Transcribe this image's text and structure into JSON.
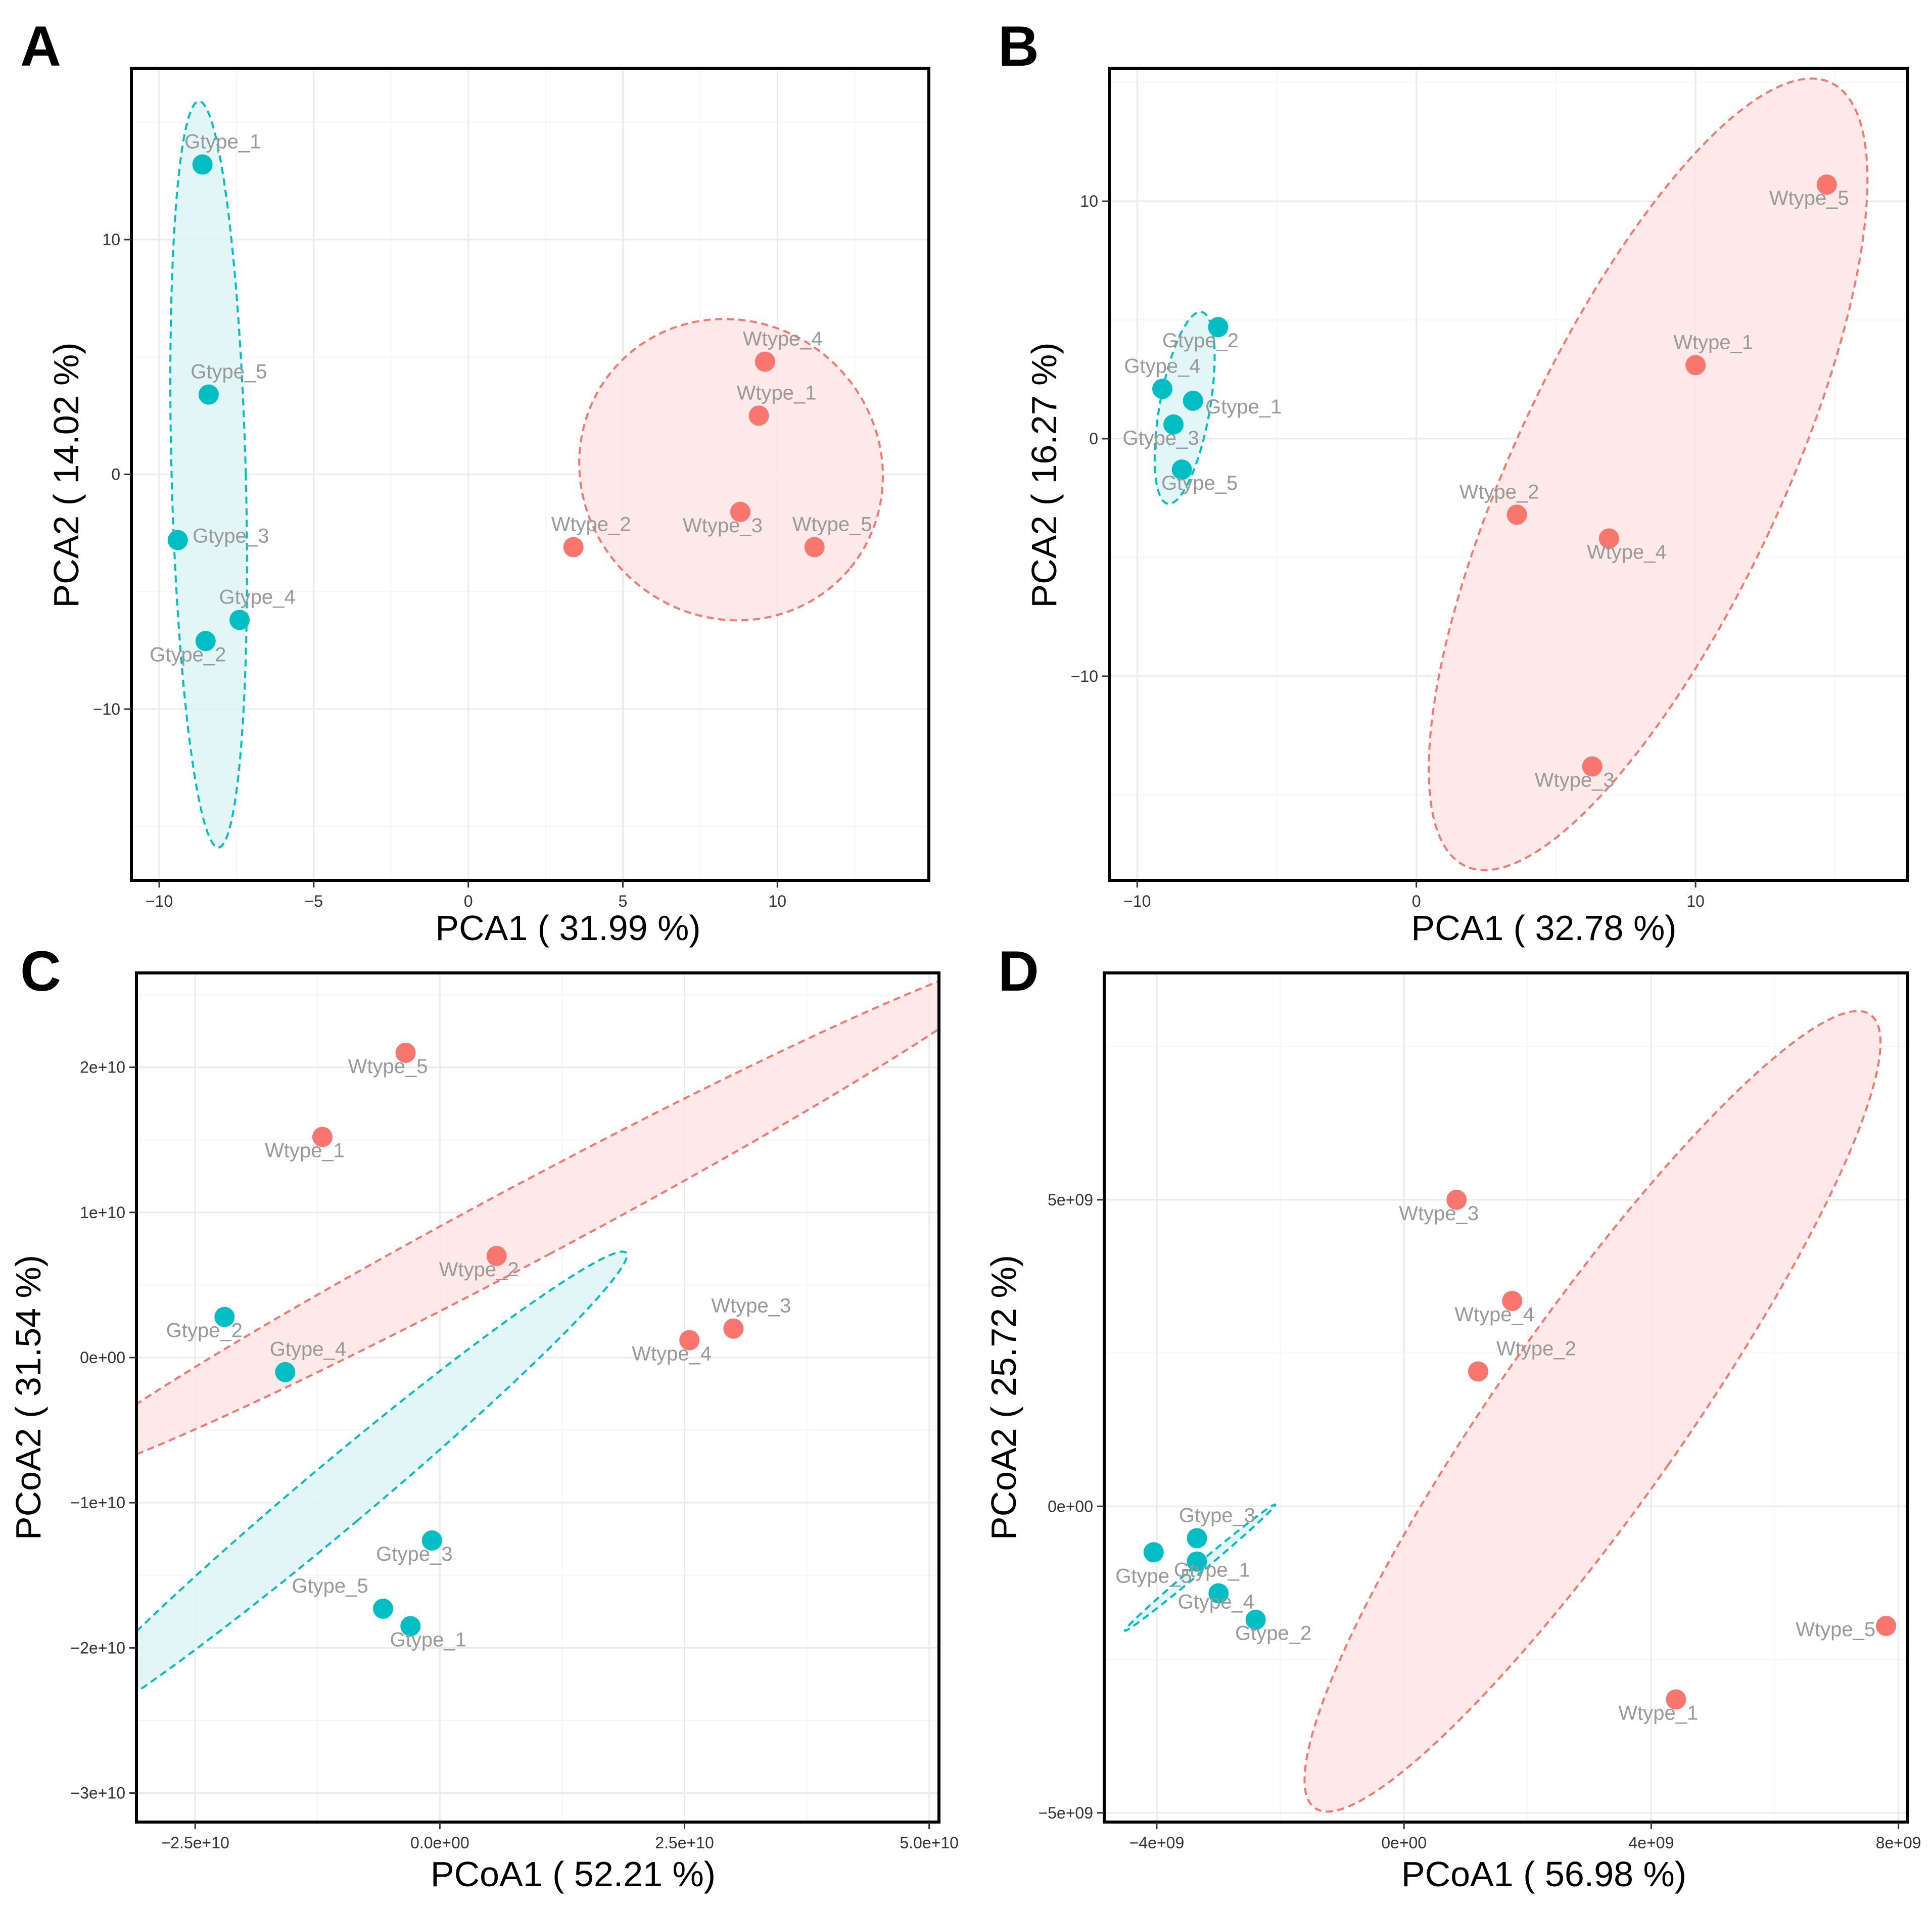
{
  "colors": {
    "wtype": "#F8766D",
    "gtype": "#00BFC4",
    "wtype_fill": "#FDE5E3",
    "gtype_fill": "#DDF4F4"
  },
  "chart_data": [
    {
      "type": "scatter",
      "panel": "A",
      "xlabel": "PCA1 ( 31.99 %)",
      "ylabel": "PCA2 ( 14.02 %)",
      "xlim": [
        -10.9,
        14.9
      ],
      "ylim": [
        -17.3,
        17.3
      ],
      "xticks": [
        -10,
        -5,
        0,
        5,
        10
      ],
      "xtick_labels": [
        "−10",
        "−5",
        "0",
        "5",
        "10"
      ],
      "yticks": [
        -10,
        0,
        10
      ],
      "ytick_labels": [
        "−10",
        "0",
        "10"
      ],
      "series": [
        {
          "name": "Gtype",
          "color": "#00BFC4",
          "points": [
            {
              "label": "Gtype_1",
              "x": -8.6,
              "y": 13.2
            },
            {
              "label": "Gtype_5",
              "x": -8.4,
              "y": 3.4
            },
            {
              "label": "Gtype_3",
              "x": -9.4,
              "y": -2.8
            },
            {
              "label": "Gtype_4",
              "x": -7.4,
              "y": -6.2
            },
            {
              "label": "Gtype_2",
              "x": -8.5,
              "y": -7.1
            }
          ],
          "ellipse": {
            "cx": -8.4,
            "cy": 0.0,
            "rx": 1.2,
            "ry": 15.9,
            "angle": -1.5
          }
        },
        {
          "name": "Wtype",
          "color": "#F8766D",
          "points": [
            {
              "label": "Wtype_4",
              "x": 9.6,
              "y": 4.8
            },
            {
              "label": "Wtype_1",
              "x": 9.4,
              "y": 2.5
            },
            {
              "label": "Wtype_3",
              "x": 8.8,
              "y": -1.6
            },
            {
              "label": "Wtype_5",
              "x": 11.2,
              "y": -3.1
            },
            {
              "label": "Wtype_2",
              "x": 3.4,
              "y": -3.1
            }
          ],
          "ellipse": {
            "cx": 8.5,
            "cy": 0.2,
            "rx": 5.0,
            "ry": 6.3,
            "angle": 40
          }
        }
      ]
    },
    {
      "type": "scatter",
      "panel": "B",
      "xlabel": "PCA1 ( 32.78 %)",
      "ylabel": "PCA2 ( 16.27 %)",
      "xlim": [
        -11.0,
        17.6
      ],
      "ylim": [
        -18.6,
        15.6
      ],
      "xticks": [
        -10,
        0,
        10
      ],
      "xtick_labels": [
        "−10",
        "0",
        "10"
      ],
      "yticks": [
        -10,
        0,
        10
      ],
      "ytick_labels": [
        "−10",
        "0",
        "10"
      ],
      "series": [
        {
          "name": "Gtype",
          "color": "#00BFC4",
          "points": [
            {
              "label": "Gtype_2",
              "x": -7.1,
              "y": 4.7
            },
            {
              "label": "Gtype_4",
              "x": -9.1,
              "y": 2.1
            },
            {
              "label": "Gtype_1",
              "x": -8.0,
              "y": 1.6
            },
            {
              "label": "Gtype_3",
              "x": -8.7,
              "y": 0.6
            },
            {
              "label": "Gtype_5",
              "x": -8.4,
              "y": -1.3
            }
          ],
          "ellipse": {
            "cx": -8.3,
            "cy": 1.3,
            "rx": 0.9,
            "ry": 4.1,
            "angle": 10
          }
        },
        {
          "name": "Wtype",
          "color": "#F8766D",
          "points": [
            {
              "label": "Wtype_5",
              "x": 14.7,
              "y": 10.7
            },
            {
              "label": "Wtype_1",
              "x": 10.0,
              "y": 3.1
            },
            {
              "label": "Wtype_2",
              "x": 3.6,
              "y": -3.2
            },
            {
              "label": "Wtype_4",
              "x": 6.9,
              "y": -4.2
            },
            {
              "label": "Wtype_3",
              "x": 6.3,
              "y": -13.8
            }
          ],
          "ellipse": {
            "cx": 8.3,
            "cy": -1.5,
            "rx": 4.8,
            "ry": 18.2,
            "angle": 25
          }
        }
      ]
    },
    {
      "type": "scatter",
      "panel": "C",
      "xlabel": "PCoA1 ( 52.21 %)",
      "ylabel": "PCoA2 ( 31.54 %)",
      "xlim": [
        -31000000000.0,
        51000000000.0
      ],
      "ylim": [
        -32000000000.0,
        26500000000.0
      ],
      "xticks": [
        -25000000000.0,
        0,
        25000000000.0,
        50000000000.0
      ],
      "xtick_labels": [
        "−2.5e+10",
        "0.0e+00",
        "2.5e+10",
        "5.0e+10"
      ],
      "yticks": [
        -30000000000.0,
        -20000000000.0,
        -10000000000.0,
        0,
        10000000000.0,
        20000000000.0
      ],
      "ytick_labels": [
        "−3e+10",
        "−2e+10",
        "−1e+10",
        "0e+00",
        "1e+10",
        "2e+10"
      ],
      "series": [
        {
          "name": "Gtype",
          "color": "#00BFC4",
          "points": [
            {
              "label": "Gtype_2",
              "x": -22000000000.0,
              "y": 2800000000.0
            },
            {
              "label": "Gtype_4",
              "x": -15800000000.0,
              "y": -1000000000.0
            },
            {
              "label": "Gtype_3",
              "x": -800000000.0,
              "y": -12600000000.0
            },
            {
              "label": "Gtype_5",
              "x": -5800000000.0,
              "y": -17300000000.0
            },
            {
              "label": "Gtype_1",
              "x": -3000000000.0,
              "y": -18500000000.0
            }
          ],
          "ellipse": {
            "cx": -10500000000.0,
            "cy": -9500000000.0,
            "rx": 3300000000.0,
            "ry": 26000000000.0,
            "angle": 50
          }
        },
        {
          "name": "Wtype",
          "color": "#F8766D",
          "points": [
            {
              "label": "Wtype_5",
              "x": -3500000000.0,
              "y": 21000000000.0
            },
            {
              "label": "Wtype_1",
              "x": -12000000000.0,
              "y": 15200000000.0
            },
            {
              "label": "Wtype_2",
              "x": 5800000000.0,
              "y": 7000000000.0
            },
            {
              "label": "Wtype_3",
              "x": 30000000000.0,
              "y": 2000000000.0
            },
            {
              "label": "Wtype_4",
              "x": 25500000000.0,
              "y": 1200000000.0
            }
          ],
          "ellipse": {
            "cx": 9500000000.0,
            "cy": 9500000000.0,
            "rx": 3900000000.0,
            "ry": 38000000000.0,
            "angle": 62
          }
        }
      ]
    },
    {
      "type": "scatter",
      "panel": "D",
      "xlabel": "PCoA1 ( 56.98 %)",
      "ylabel": "PCoA2 ( 25.72 %)",
      "xlim": [
        -4850000000.0,
        8150000000.0
      ],
      "ylim": [
        -5150000000.0,
        8700000000.0
      ],
      "xticks": [
        -4000000000.0,
        0,
        4000000000.0,
        8000000000.0
      ],
      "xtick_labels": [
        "−4e+09",
        "0e+00",
        "4e+09",
        "8e+09"
      ],
      "yticks": [
        -5000000000.0,
        0,
        5000000000.0
      ],
      "ytick_labels": [
        "−5e+09",
        "0e+00",
        "5e+09"
      ],
      "series": [
        {
          "name": "Gtype",
          "color": "#00BFC4",
          "points": [
            {
              "label": "Gtype_3",
              "x": -3350000000.0,
              "y": -520000000.0
            },
            {
              "label": "Gtype_5",
              "x": -4050000000.0,
              "y": -750000000.0
            },
            {
              "label": "Gtype_1",
              "x": -3350000000.0,
              "y": -900000000.0
            },
            {
              "label": "Gtype_4",
              "x": -3000000000.0,
              "y": -1420000000.0
            },
            {
              "label": "Gtype_2",
              "x": -2400000000.0,
              "y": -1850000000.0
            }
          ],
          "ellipse": {
            "cx": -3300000000.0,
            "cy": -1000000000.0,
            "rx": 70000000.0,
            "ry": 1600000000.0,
            "angle": 50
          }
        },
        {
          "name": "Wtype",
          "color": "#F8766D",
          "points": [
            {
              "label": "Wtype_3",
              "x": 850000000.0,
              "y": 5000000000.0
            },
            {
              "label": "Wtype_4",
              "x": 1750000000.0,
              "y": 3350000000.0
            },
            {
              "label": "Wtype_2",
              "x": 1200000000.0,
              "y": 2200000000.0
            },
            {
              "label": "Wtype_5",
              "x": 7800000000.0,
              "y": -1950000000.0
            },
            {
              "label": "Wtype_1",
              "x": 4400000000.0,
              "y": -3150000000.0
            }
          ],
          "ellipse": {
            "cx": 3050000000.0,
            "cy": 1550000000.0,
            "rx": 1500000000.0,
            "ry": 7900000000.0,
            "angle": 35
          }
        }
      ]
    }
  ]
}
